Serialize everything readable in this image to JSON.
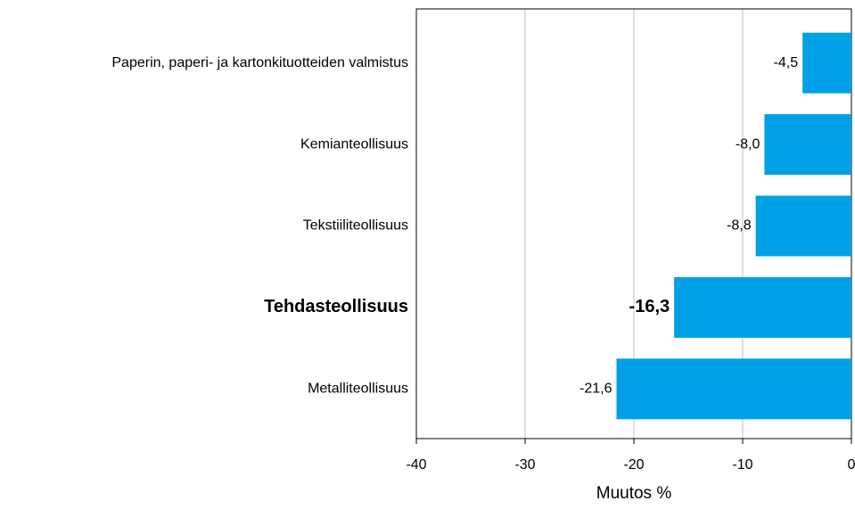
{
  "chart_data": {
    "type": "bar",
    "orientation": "horizontal",
    "categories": [
      "Paperin, paperi- ja kartonkituotteiden valmistus",
      "Kemianteollisuus",
      "Tekstiiliteollisuus",
      "Tehdasteollisuus",
      "Metalliteollisuus"
    ],
    "values": [
      -4.5,
      -8.0,
      -8.8,
      -16.3,
      -21.6
    ],
    "value_labels": [
      "-4,5",
      "-8,0",
      "-8,8",
      "-16,3",
      "-21,6"
    ],
    "bold_index": 3,
    "color": "#00a0e6",
    "xlabel": "Muutos %",
    "xlim": [
      -40,
      0
    ],
    "xticks": [
      -40,
      -30,
      -20,
      -10,
      0
    ],
    "grid": true
  }
}
